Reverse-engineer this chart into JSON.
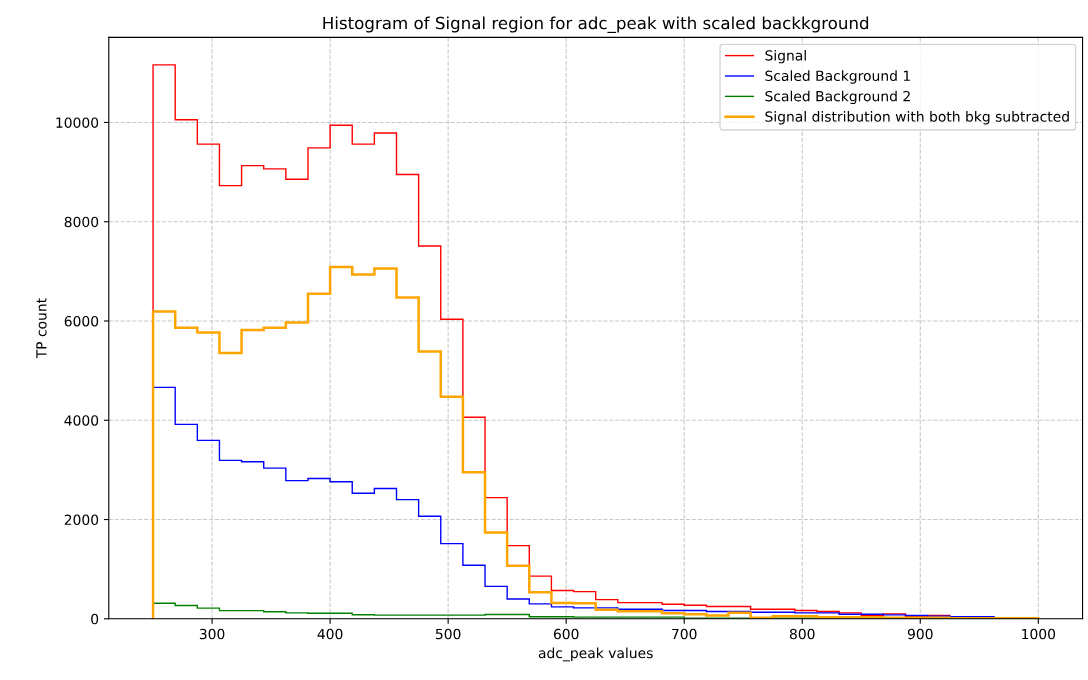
{
  "chart_data": {
    "type": "histogram",
    "title": "Histogram of Signal region for adc_peak with scaled backkground",
    "xlabel": "adc_peak values",
    "ylabel": "TP count",
    "bins": [
      250,
      268.75,
      287.5,
      306.25,
      325,
      343.75,
      362.5,
      381.25,
      400,
      418.75,
      437.5,
      456.25,
      475,
      493.75,
      512.5,
      531.25,
      550,
      568.75,
      587.5,
      606.25,
      625,
      643.75,
      662.5,
      681.25,
      700,
      718.75,
      737.5,
      756.25,
      775,
      793.75,
      812.5,
      831.25,
      850,
      868.75,
      887.5,
      906.25,
      925,
      943.75,
      962.5,
      981.25,
      1000
    ],
    "series": [
      {
        "name": "Signal",
        "color": "#ff0000",
        "values": [
          11160,
          10056,
          9564,
          8728,
          9131,
          9064,
          8855,
          9489,
          9944,
          9564,
          9788,
          8952,
          7512,
          6035,
          4060,
          2441,
          1474,
          860,
          570,
          547,
          387,
          327,
          327,
          293,
          273,
          247,
          247,
          193,
          193,
          167,
          147,
          120,
          67,
          100,
          47,
          67,
          20,
          5,
          5,
          5
        ]
      },
      {
        "name": "Scaled Background 1",
        "color": "#0000ff",
        "values": [
          4663,
          3917,
          3596,
          3193,
          3163,
          3036,
          2783,
          2827,
          2760,
          2529,
          2626,
          2402,
          2066,
          1514,
          1078,
          654,
          400,
          300,
          240,
          220,
          220,
          193,
          193,
          167,
          167,
          147,
          147,
          133,
          133,
          120,
          120,
          93,
          93,
          80,
          67,
          53,
          40,
          40,
          0,
          0
        ]
      },
      {
        "name": "Scaled Background 2",
        "color": "#008000",
        "values": [
          313,
          269,
          216,
          164,
          164,
          142,
          119,
          112,
          112,
          82,
          75,
          75,
          75,
          75,
          75,
          87,
          87,
          40,
          40,
          33,
          33,
          33,
          33,
          33,
          13,
          13,
          13,
          13,
          13,
          13,
          10,
          10,
          10,
          10,
          10,
          5,
          5,
          5,
          0,
          0
        ]
      },
      {
        "name": "Signal distribution with both bkg subtracted",
        "color": "#ffa500",
        "values": [
          6192,
          5864,
          5767,
          5356,
          5819,
          5864,
          5968,
          6550,
          7087,
          6938,
          7057,
          6475,
          5386,
          4476,
          2955,
          1741,
          1067,
          534,
          320,
          313,
          180,
          153,
          153,
          113,
          93,
          67,
          120,
          20,
          53,
          53,
          33,
          33,
          33,
          20,
          20,
          20,
          13,
          13,
          13,
          13
        ]
      }
    ],
    "xlim": [
      212.5,
      1037.5
    ],
    "ylim": [
      0,
      11714
    ],
    "xticks": [
      300,
      400,
      500,
      600,
      700,
      800,
      900,
      1000
    ],
    "yticks": [
      0,
      2000,
      4000,
      6000,
      8000,
      10000
    ],
    "grid": true,
    "legend": "top right"
  }
}
